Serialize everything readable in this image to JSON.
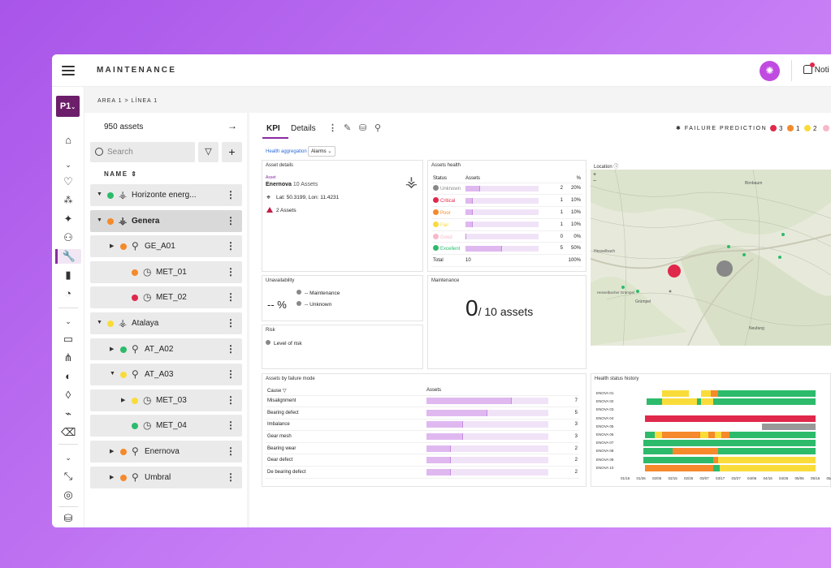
{
  "app": {
    "title": "MAINTENANCE",
    "avatar": "✺",
    "notifications": "Noti"
  },
  "rail": {
    "project": "P1"
  },
  "breadcrumb": "AREA 1 > LÍNEA 1",
  "left": {
    "count": "950 assets",
    "search_placeholder": "Search",
    "name_header": "NAME",
    "tree": [
      {
        "label": "Horizonte energ...",
        "level": 0,
        "caret": "▼",
        "status": "#2dbb6b",
        "icon": "tower-icon"
      },
      {
        "label": "Genera",
        "level": 0,
        "caret": "▼",
        "status": "#f5892b",
        "icon": "tower-icon",
        "selected": true
      },
      {
        "label": "GE_A01",
        "level": 1,
        "caret": "▶",
        "status": "#f5892b",
        "icon": "turbine-icon"
      },
      {
        "label": "MET_01",
        "level": 2,
        "caret": "",
        "status": "#f5892b",
        "icon": "gauge-icon"
      },
      {
        "label": "MET_02",
        "level": 2,
        "caret": "",
        "status": "#e0284b",
        "icon": "gauge-icon"
      },
      {
        "label": "Atalaya",
        "level": 0,
        "caret": "▼",
        "status": "#f9dc3a",
        "icon": "tower-icon"
      },
      {
        "label": "AT_A02",
        "level": 1,
        "caret": "▶",
        "status": "#2dbb6b",
        "icon": "turbine-icon"
      },
      {
        "label": "AT_A03",
        "level": 1,
        "caret": "▼",
        "status": "#f9dc3a",
        "icon": "turbine-icon"
      },
      {
        "label": "MET_03",
        "level": 2,
        "caret": "▶",
        "status": "#f9dc3a",
        "icon": "gauge-icon"
      },
      {
        "label": "MET_04",
        "level": 2,
        "caret": "",
        "status": "#2dbb6b",
        "icon": "gauge-icon"
      },
      {
        "label": "Enernova",
        "level": 1,
        "caret": "▶",
        "status": "#f5892b",
        "icon": "turbine-icon"
      },
      {
        "label": "Umbral",
        "level": 1,
        "caret": "▶",
        "status": "#f5892b",
        "icon": "turbine-icon"
      }
    ]
  },
  "tabs": {
    "kpi": "KPI",
    "details": "Details"
  },
  "failure_prediction": {
    "label": "FAILURE PREDICTION",
    "items": [
      {
        "count": "3",
        "color": "#e0284b"
      },
      {
        "count": "1",
        "color": "#f5892b"
      },
      {
        "count": "2",
        "color": "#f9dc3a"
      },
      {
        "count": "",
        "color": "#f7b9c9"
      }
    ]
  },
  "filters": {
    "health": "Health aggregation",
    "alarms": "Alarms ⌄"
  },
  "asset_details": {
    "title": "Asset details",
    "asset_label": "Asset",
    "name": "Enernova",
    "name_suffix": " 10 Assets",
    "latlon": "Lat: 50.3199, Lon: 11.4231",
    "assets": "2 Assets"
  },
  "assets_health": {
    "title": "Assets health",
    "headers": [
      "Status",
      "Assets",
      "%"
    ],
    "rows": [
      {
        "status": "Unknown",
        "color": "#888888",
        "fill": 0.2,
        "count": "2",
        "pct": "20%"
      },
      {
        "status": "Critical",
        "color": "#e0284b",
        "fill": 0.1,
        "count": "1",
        "pct": "10%"
      },
      {
        "status": "Poor",
        "color": "#f5892b",
        "fill": 0.1,
        "count": "1",
        "pct": "10%"
      },
      {
        "status": "Fair",
        "color": "#f9dc3a",
        "fill": 0.1,
        "count": "1",
        "pct": "10%"
      },
      {
        "status": "Good",
        "color": "#f7b9c9",
        "fill": 0,
        "count": "0",
        "pct": "0%"
      },
      {
        "status": "Excellent",
        "color": "#2dbb6b",
        "fill": 0.5,
        "count": "5",
        "pct": "50%"
      }
    ],
    "total_label": "Total",
    "total_count": "10",
    "total_pct": "100%"
  },
  "location": {
    "title": "Location",
    "places": [
      "Birnbaum",
      "Hesselbach",
      "Hesselbacher Grümpel",
      "Grümpel",
      "Neufang"
    ]
  },
  "unavailability": {
    "title": "Unavailability",
    "value": "-- %",
    "legend": [
      "-- Maintenance",
      "-- Unknown"
    ]
  },
  "maintenance": {
    "title": "Maintenance",
    "value": "0",
    "suffix": "/ 10 assets"
  },
  "risk": {
    "title": "Risk",
    "legend": "Level of risk"
  },
  "failure_mode": {
    "title": "Assets by failure mode",
    "headers": [
      "Cause",
      "Assets"
    ],
    "rows": [
      {
        "cause": "Misalignment",
        "value": 7
      },
      {
        "cause": "Bearing defect",
        "value": 5
      },
      {
        "cause": "Imbalance",
        "value": 3
      },
      {
        "cause": "Gear mesh",
        "value": 3
      },
      {
        "cause": "Bearing wear",
        "value": 2
      },
      {
        "cause": "Gear defect",
        "value": 2
      },
      {
        "cause": "De bearing defect",
        "value": 2
      }
    ]
  },
  "health_history": {
    "title": "Health status history",
    "rows": [
      "ENOVA 01",
      "ENOVA 02",
      "ENOVA 03",
      "ENOVA 04",
      "ENOVA 05",
      "ENOVA 06",
      "ENOVA 07",
      "ENOVA 08",
      "ENOVA 09",
      "ENOVA 10"
    ],
    "dates": [
      "01/16",
      "01/26",
      "02/05",
      "02/15",
      "02/25",
      "03/07",
      "03/17",
      "03/27",
      "04/06",
      "04/16",
      "04/26",
      "05/06",
      "05/16",
      "05/26"
    ]
  }
}
